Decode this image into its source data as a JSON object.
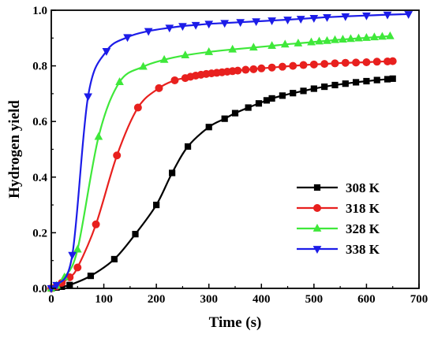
{
  "chart_data": {
    "type": "line",
    "title": "",
    "xlabel": "Time (s)",
    "ylabel": "Hydrogen yield",
    "xlim": [
      0,
      700
    ],
    "ylim": [
      0,
      1.0
    ],
    "xticks": [
      "0",
      "100",
      "200",
      "300",
      "400",
      "500",
      "600",
      "700"
    ],
    "yticks": [
      "0.0",
      "0.2",
      "0.4",
      "0.6",
      "0.8",
      "1.0"
    ],
    "grid": false,
    "legend_position": "right",
    "series": [
      {
        "name": "308 K",
        "color": "#000000",
        "marker": "square",
        "x": [
          0,
          10,
          20,
          35,
          75,
          120,
          160,
          200,
          230,
          260,
          300,
          330,
          350,
          375,
          395,
          410,
          420,
          440,
          460,
          480,
          500,
          520,
          540,
          560,
          580,
          600,
          620,
          640,
          650
        ],
        "y": [
          0.0,
          0.003,
          0.006,
          0.012,
          0.045,
          0.105,
          0.195,
          0.3,
          0.415,
          0.51,
          0.58,
          0.61,
          0.63,
          0.65,
          0.665,
          0.676,
          0.683,
          0.693,
          0.702,
          0.71,
          0.718,
          0.725,
          0.731,
          0.736,
          0.741,
          0.745,
          0.749,
          0.752,
          0.754
        ]
      },
      {
        "name": "318 K",
        "color": "#e8201e",
        "marker": "circle",
        "x": [
          0,
          10,
          20,
          35,
          50,
          85,
          125,
          165,
          205,
          235,
          255,
          265,
          275,
          285,
          295,
          305,
          315,
          325,
          335,
          345,
          355,
          370,
          385,
          400,
          420,
          440,
          460,
          480,
          500,
          520,
          540,
          560,
          580,
          600,
          620,
          640,
          650
        ],
        "y": [
          0.0,
          0.008,
          0.02,
          0.04,
          0.075,
          0.23,
          0.478,
          0.65,
          0.72,
          0.748,
          0.756,
          0.761,
          0.765,
          0.768,
          0.771,
          0.773,
          0.775,
          0.777,
          0.779,
          0.781,
          0.783,
          0.786,
          0.788,
          0.791,
          0.794,
          0.797,
          0.8,
          0.803,
          0.805,
          0.807,
          0.809,
          0.811,
          0.812,
          0.813,
          0.815,
          0.816,
          0.817
        ]
      },
      {
        "name": "328 K",
        "color": "#3fe83a",
        "marker": "triangle-up",
        "x": [
          0,
          10,
          25,
          50,
          90,
          130,
          175,
          215,
          255,
          300,
          345,
          385,
          420,
          445,
          470,
          495,
          510,
          525,
          540,
          555,
          570,
          585,
          600,
          615,
          630,
          645
        ],
        "y": [
          0.0,
          0.01,
          0.04,
          0.14,
          0.545,
          0.742,
          0.797,
          0.822,
          0.838,
          0.85,
          0.859,
          0.866,
          0.872,
          0.877,
          0.881,
          0.885,
          0.888,
          0.89,
          0.893,
          0.895,
          0.897,
          0.899,
          0.901,
          0.903,
          0.905,
          0.907
        ]
      },
      {
        "name": "338 K",
        "color": "#1c1ce8",
        "marker": "triangle-down",
        "x": [
          0,
          10,
          40,
          70,
          105,
          145,
          185,
          225,
          250,
          275,
          300,
          330,
          360,
          390,
          420,
          450,
          475,
          500,
          525,
          560,
          600,
          640,
          680
        ],
        "y": [
          0.0,
          0.012,
          0.12,
          0.69,
          0.853,
          0.903,
          0.925,
          0.937,
          0.943,
          0.947,
          0.951,
          0.954,
          0.957,
          0.96,
          0.963,
          0.966,
          0.969,
          0.972,
          0.975,
          0.978,
          0.981,
          0.984,
          0.986
        ]
      }
    ]
  }
}
